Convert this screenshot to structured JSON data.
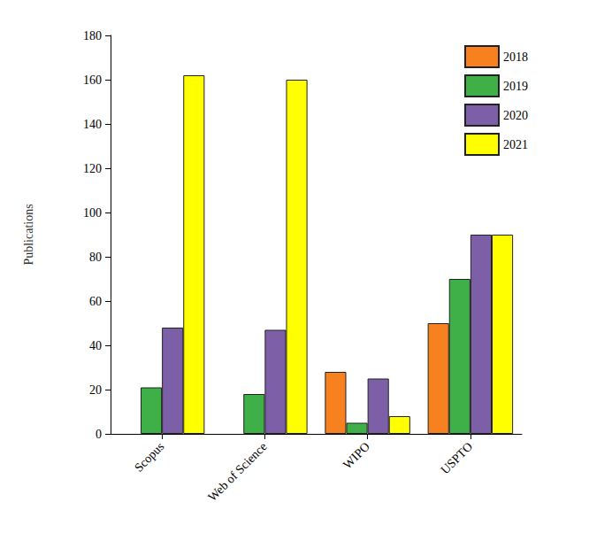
{
  "chart_data": {
    "type": "bar",
    "y_label": "Publications",
    "categories": [
      "Scopus",
      "Web of Science",
      "WIPO",
      "USPTO"
    ],
    "series": [
      {
        "name": "2018",
        "color": "#f7801f",
        "values": [
          null,
          null,
          28,
          50
        ]
      },
      {
        "name": "2019",
        "color": "#3fb047",
        "values": [
          21,
          18,
          5,
          70
        ]
      },
      {
        "name": "2020",
        "color": "#7d5fa8",
        "values": [
          48,
          47,
          25,
          90
        ]
      },
      {
        "name": "2021",
        "color": "#ffff00",
        "values": [
          162,
          160,
          8,
          90
        ]
      }
    ],
    "ylim": [
      0,
      180
    ],
    "yticks": [
      0,
      20,
      40,
      60,
      80,
      100,
      120,
      140,
      160,
      180
    ],
    "grid": false,
    "legend": "upper right"
  }
}
